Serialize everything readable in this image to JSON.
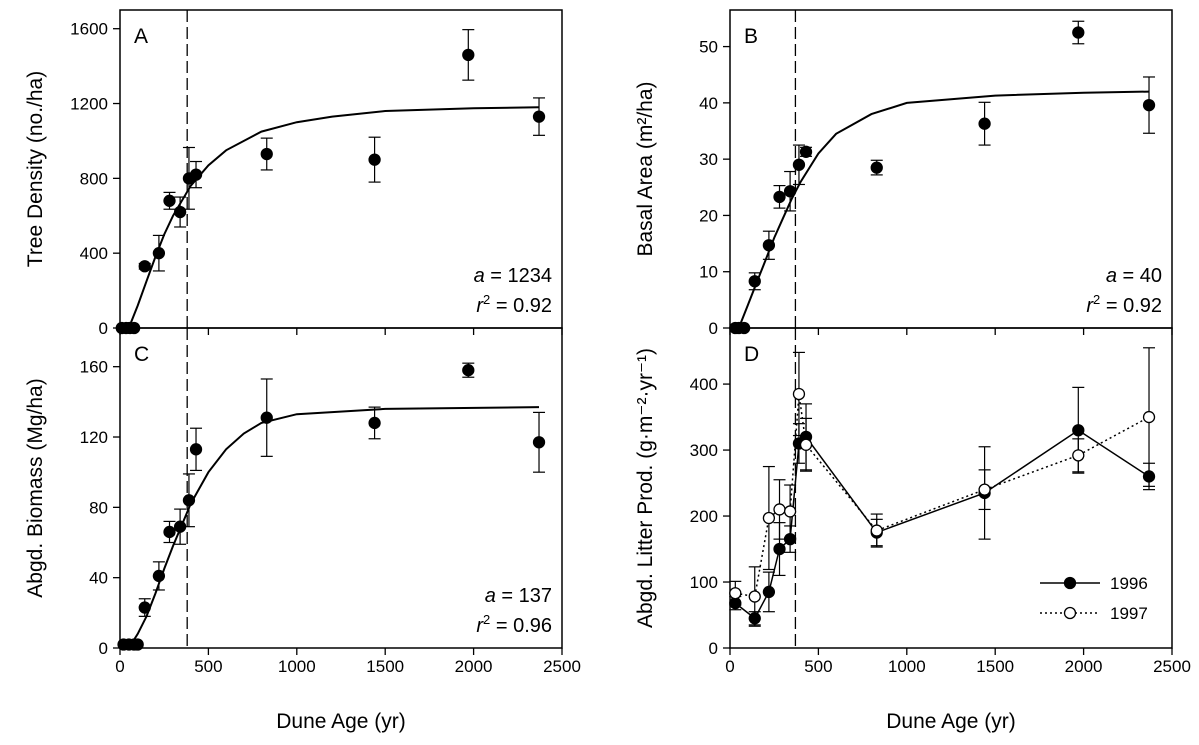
{
  "chart_data": [
    {
      "type": "scatter",
      "panel_label": "A",
      "ylabel": "Tree Density (no./ha)",
      "xlim": [
        0,
        2500
      ],
      "ylim": [
        0,
        1700
      ],
      "xticks": [
        0,
        500,
        1000,
        1500,
        2000,
        2500
      ],
      "xticklabels": false,
      "yticks": [
        0,
        400,
        800,
        1200,
        1600
      ],
      "reference_x": 380,
      "series": [
        {
          "marker": "filled",
          "color": "#000000",
          "x": [
            10,
            35,
            55,
            80,
            140,
            220,
            280,
            340,
            390,
            430,
            830,
            1440,
            1970,
            2370
          ],
          "values": [
            0,
            0,
            0,
            0,
            330,
            400,
            680,
            620,
            800,
            820,
            930,
            900,
            1460,
            1130
          ],
          "errors": [
            null,
            null,
            null,
            null,
            15,
            95,
            45,
            80,
            165,
            70,
            85,
            120,
            135,
            100
          ]
        }
      ],
      "fit": {
        "x": [
          50,
          100,
          150,
          200,
          250,
          300,
          400,
          500,
          600,
          800,
          1000,
          1200,
          1500,
          2000,
          2370
        ],
        "values": [
          0,
          120,
          250,
          380,
          500,
          600,
          760,
          870,
          950,
          1050,
          1100,
          1130,
          1160,
          1175,
          1180
        ]
      },
      "annotation": {
        "a_symbol": "a",
        "a_text": " = 1234",
        "r_symbol": "r",
        "r_sup": "2",
        "r_text": " = 0.92"
      }
    },
    {
      "type": "scatter",
      "panel_label": "B",
      "ylabel": "Basal Area (m²/ha)",
      "xlim": [
        0,
        2500
      ],
      "ylim": [
        0,
        56.5
      ],
      "xticks": [
        0,
        500,
        1000,
        1500,
        2000,
        2500
      ],
      "xticklabels": false,
      "yticks": [
        0,
        10,
        20,
        30,
        40,
        50
      ],
      "reference_x": 370,
      "series": [
        {
          "marker": "filled",
          "color": "#000000",
          "x": [
            30,
            50,
            80,
            140,
            220,
            280,
            340,
            390,
            430,
            830,
            1440,
            1970,
            2370
          ],
          "values": [
            0,
            0,
            0,
            8.3,
            14.7,
            23.3,
            24.3,
            29,
            31.3,
            28.5,
            36.3,
            52.5,
            39.6
          ],
          "errors": [
            null,
            null,
            null,
            1.5,
            2.5,
            2,
            3.5,
            3.5,
            0.8,
            1.3,
            3.8,
            2,
            5
          ]
        }
      ],
      "fit": {
        "x": [
          50,
          100,
          150,
          200,
          250,
          300,
          350,
          400,
          500,
          600,
          800,
          1000,
          1500,
          2000,
          2370
        ],
        "values": [
          0,
          4,
          8,
          12,
          16,
          19.5,
          23,
          26,
          31,
          34.5,
          38,
          40,
          41.3,
          41.8,
          42
        ]
      },
      "annotation": {
        "a_symbol": "a",
        "a_text": " = 40",
        "r_symbol": "r",
        "r_sup": "2",
        "r_text": " = 0.92"
      }
    },
    {
      "type": "scatter",
      "panel_label": "C",
      "ylabel": "Abgd. Biomass (Mg/ha)",
      "xlabel": "Dune Age (yr)",
      "xlim": [
        0,
        2500
      ],
      "ylim": [
        0,
        182
      ],
      "xticks": [
        0,
        500,
        1000,
        1500,
        2000,
        2500
      ],
      "xticklabels": true,
      "yticks": [
        0,
        40,
        80,
        120,
        160
      ],
      "reference_x": 380,
      "series": [
        {
          "marker": "filled",
          "color": "#000000",
          "x": [
            20,
            50,
            80,
            100,
            140,
            220,
            280,
            340,
            390,
            430,
            830,
            1440,
            1970,
            2370
          ],
          "values": [
            2,
            2,
            2,
            2,
            23,
            41,
            66,
            69,
            84,
            113,
            131,
            128,
            158,
            117
          ],
          "errors": [
            null,
            null,
            null,
            null,
            5,
            8,
            6,
            10,
            15,
            12,
            22,
            9,
            4,
            17
          ]
        }
      ],
      "fit": {
        "x": [
          50,
          100,
          150,
          200,
          250,
          300,
          350,
          400,
          500,
          600,
          700,
          800,
          1000,
          1500,
          2370
        ],
        "values": [
          0,
          8,
          18,
          31,
          45,
          58,
          70,
          82,
          100,
          113,
          122,
          128,
          133,
          136,
          137
        ]
      },
      "annotation": {
        "a_symbol": "a",
        "a_text": " = 137",
        "r_symbol": "r",
        "r_sup": "2",
        "r_text": " = 0.96"
      }
    },
    {
      "type": "line",
      "panel_label": "D",
      "ylabel": "Abgd. Litter Prod. (g·m⁻²·yr⁻¹)",
      "xlabel": "Dune Age (yr)",
      "xlim": [
        0,
        2500
      ],
      "ylim": [
        0,
        485
      ],
      "xticks": [
        0,
        500,
        1000,
        1500,
        2000,
        2500
      ],
      "xticklabels": true,
      "yticks": [
        0,
        100,
        200,
        300,
        400
      ],
      "reference_x": 370,
      "legend": "lower right",
      "series": [
        {
          "name": "1996",
          "marker": "filled",
          "dash": "solid",
          "color": "#000000",
          "x": [
            30,
            140,
            220,
            280,
            340,
            390,
            430,
            830,
            1440,
            1970,
            2370
          ],
          "values": [
            68,
            45,
            85,
            150,
            165,
            310,
            320,
            175,
            235,
            330,
            260
          ],
          "errors": [
            10,
            10,
            30,
            40,
            20,
            30,
            50,
            20,
            70,
            65,
            20
          ]
        },
        {
          "name": "1997",
          "marker": "open",
          "dash": "dotted",
          "color": "#000000",
          "x": [
            30,
            140,
            220,
            280,
            340,
            390,
            430,
            830,
            1440,
            1970,
            2370
          ],
          "values": [
            83,
            78,
            197,
            210,
            207,
            385,
            308,
            178,
            240,
            292,
            350
          ],
          "errors": [
            18,
            45,
            78,
            45,
            40,
            63,
            40,
            25,
            30,
            25,
            105
          ]
        }
      ]
    }
  ]
}
